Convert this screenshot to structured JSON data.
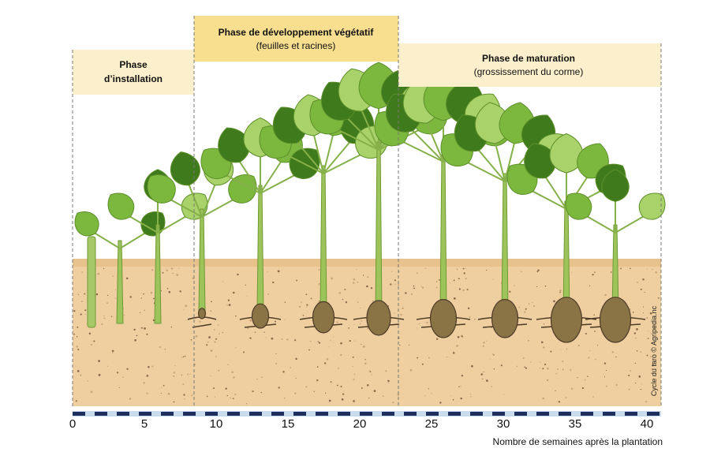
{
  "phases": [
    {
      "title_lines": [
        "Phase",
        "d’installation"
      ]
    },
    {
      "title": "Phase de développement végétatif",
      "subtitle": "(feuilles et racines)"
    },
    {
      "title": "Phase de maturation",
      "subtitle": "(grossissement du corme)"
    }
  ],
  "timeline": {
    "ticks": [
      0,
      5,
      10,
      15,
      20,
      25,
      30,
      35,
      40
    ],
    "label": "Nombre de semaines après la plantation"
  },
  "credit": "Cycle du taro © Agripedia.nc"
}
